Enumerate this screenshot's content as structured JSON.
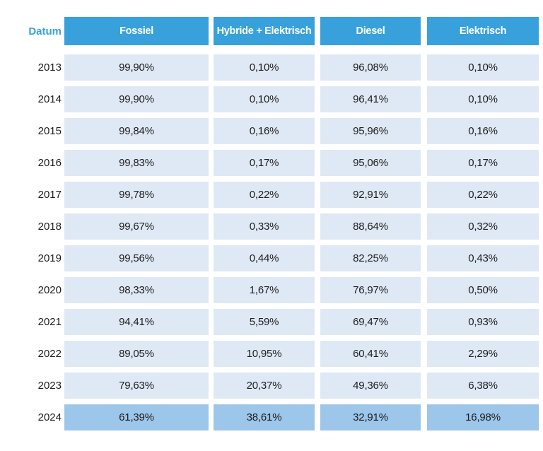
{
  "colors": {
    "accent": "#38a1db",
    "row_bg": "#dfe9f5",
    "highlight_bg": "#9cc6ea",
    "text_dark": "#1d1d1d",
    "header_text": "#ffffff"
  },
  "table": {
    "columns": [
      {
        "key": "datum",
        "label": "Datum"
      },
      {
        "key": "fossiel",
        "label": "Fossiel"
      },
      {
        "key": "hybride_elektrisch",
        "label": "Hybride + Elektrisch"
      },
      {
        "key": "diesel",
        "label": "Diesel"
      },
      {
        "key": "elektrisch",
        "label": "Elektrisch"
      }
    ],
    "rows": [
      {
        "datum": "2013",
        "values": [
          "99,90%",
          "0,10%",
          "96,08%",
          "0,10%"
        ],
        "highlight": false
      },
      {
        "datum": "2014",
        "values": [
          "99,90%",
          "0,10%",
          "96,41%",
          "0,10%"
        ],
        "highlight": false
      },
      {
        "datum": "2015",
        "values": [
          "99,84%",
          "0,16%",
          "95,96%",
          "0,16%"
        ],
        "highlight": false
      },
      {
        "datum": "2016",
        "values": [
          "99,83%",
          "0,17%",
          "95,06%",
          "0,17%"
        ],
        "highlight": false
      },
      {
        "datum": "2017",
        "values": [
          "99,78%",
          "0,22%",
          "92,91%",
          "0,22%"
        ],
        "highlight": false
      },
      {
        "datum": "2018",
        "values": [
          "99,67%",
          "0,33%",
          "88,64%",
          "0,32%"
        ],
        "highlight": false
      },
      {
        "datum": "2019",
        "values": [
          "99,56%",
          "0,44%",
          "82,25%",
          "0,43%"
        ],
        "highlight": false
      },
      {
        "datum": "2020",
        "values": [
          "98,33%",
          "1,67%",
          "76,97%",
          "0,50%"
        ],
        "highlight": false
      },
      {
        "datum": "2021",
        "values": [
          "94,41%",
          "5,59%",
          "69,47%",
          "0,93%"
        ],
        "highlight": false
      },
      {
        "datum": "2022",
        "values": [
          "89,05%",
          "10,95%",
          "60,41%",
          "2,29%"
        ],
        "highlight": false
      },
      {
        "datum": "2023",
        "values": [
          "79,63%",
          "20,37%",
          "49,36%",
          "6,38%"
        ],
        "highlight": false
      },
      {
        "datum": "2024",
        "values": [
          "61,39%",
          "38,61%",
          "32,91%",
          "16,98%"
        ],
        "highlight": true
      }
    ]
  },
  "chart_data": {
    "type": "table",
    "title": "",
    "categories": [
      "2013",
      "2014",
      "2015",
      "2016",
      "2017",
      "2018",
      "2019",
      "2020",
      "2021",
      "2022",
      "2023",
      "2024"
    ],
    "series": [
      {
        "name": "Fossiel",
        "values": [
          99.9,
          99.9,
          99.84,
          99.83,
          99.78,
          99.67,
          99.56,
          98.33,
          94.41,
          89.05,
          79.63,
          61.39
        ]
      },
      {
        "name": "Hybride + Elektrisch",
        "values": [
          0.1,
          0.1,
          0.16,
          0.17,
          0.22,
          0.33,
          0.44,
          1.67,
          5.59,
          10.95,
          20.37,
          38.61
        ]
      },
      {
        "name": "Diesel",
        "values": [
          96.08,
          96.41,
          95.96,
          95.06,
          92.91,
          88.64,
          82.25,
          76.97,
          69.47,
          60.41,
          49.36,
          32.91
        ]
      },
      {
        "name": "Elektrisch",
        "values": [
          0.1,
          0.1,
          0.16,
          0.17,
          0.22,
          0.32,
          0.43,
          0.5,
          0.93,
          2.29,
          6.38,
          16.98
        ]
      }
    ],
    "unit": "%",
    "notes": "Values use comma decimal separator; 2024 row is highlighted"
  }
}
